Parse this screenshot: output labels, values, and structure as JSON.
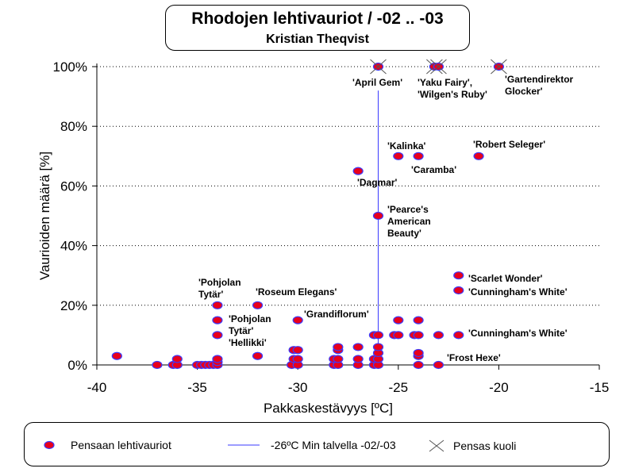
{
  "title": "Rhodojen lehtivauriot / -02 .. -03",
  "subtitle": "Kristian Theqvist",
  "chart_data": {
    "type": "scatter",
    "xlabel": "Pakkaskestävyys [ºC]",
    "ylabel": "Vaurioiden määrä [%]",
    "xlim": [
      -40,
      -15
    ],
    "ylim": [
      0,
      100
    ],
    "xticks": [
      "-40",
      "-35",
      "-30",
      "-25",
      "-20",
      "-15"
    ],
    "yticks": [
      "0%",
      "20%",
      "40%",
      "60%",
      "80%",
      "100%"
    ],
    "grid": "horizontal dotted",
    "series": [
      {
        "name": "Pensaan lehtivauriot",
        "color": "#e8001c",
        "points": [
          [
            -39,
            3
          ],
          [
            -37,
            0
          ],
          [
            -36.2,
            0
          ],
          [
            -36,
            0
          ],
          [
            -36,
            2
          ],
          [
            -35,
            0
          ],
          [
            -34.8,
            0
          ],
          [
            -34.6,
            0
          ],
          [
            -34.4,
            0
          ],
          [
            -34.2,
            0
          ],
          [
            -34,
            0
          ],
          [
            -34,
            1
          ],
          [
            -34,
            2
          ],
          [
            -34,
            10
          ],
          [
            -34,
            15
          ],
          [
            -34,
            20
          ],
          [
            -32,
            3
          ],
          [
            -32,
            20
          ],
          [
            -30.3,
            0
          ],
          [
            -30,
            0
          ],
          [
            -30.2,
            2
          ],
          [
            -30,
            2
          ],
          [
            -30.2,
            5
          ],
          [
            -30,
            5
          ],
          [
            -30,
            15
          ],
          [
            -28.2,
            0
          ],
          [
            -28,
            0
          ],
          [
            -28.2,
            2
          ],
          [
            -28,
            2
          ],
          [
            -28,
            5
          ],
          [
            -28,
            6
          ],
          [
            -27,
            0
          ],
          [
            -27,
            2
          ],
          [
            -27,
            6
          ],
          [
            -27,
            65
          ],
          [
            -26.2,
            0
          ],
          [
            -26,
            0
          ],
          [
            -26.2,
            2
          ],
          [
            -26,
            2
          ],
          [
            -26,
            4
          ],
          [
            -26,
            6
          ],
          [
            -26.2,
            10
          ],
          [
            -26,
            10
          ],
          [
            -26,
            50
          ],
          [
            -25.2,
            10
          ],
          [
            -25,
            10
          ],
          [
            -25,
            15
          ],
          [
            -25,
            70
          ],
          [
            -24.2,
            10
          ],
          [
            -24,
            10
          ],
          [
            -24,
            0
          ],
          [
            -24,
            3
          ],
          [
            -24,
            4
          ],
          [
            -24,
            15
          ],
          [
            -24,
            70
          ],
          [
            -23,
            0
          ],
          [
            -23,
            10
          ],
          [
            -22,
            10
          ],
          [
            -22,
            25
          ],
          [
            -22,
            30
          ],
          [
            -21,
            70
          ]
        ]
      },
      {
        "name": "Pensas kuoli",
        "color": "#e8001c",
        "points": [
          [
            -26,
            100
          ],
          [
            -23.2,
            100
          ],
          [
            -23,
            100
          ],
          [
            -20,
            100
          ]
        ]
      }
    ],
    "reference_line": {
      "name": "-26ºC Min talvella -02/-03",
      "x": -26,
      "y_range": [
        0,
        92
      ],
      "color": "#3a3aff"
    },
    "annotations": [
      {
        "text": [
          "'April Gem'"
        ],
        "x": -26,
        "y": 100
      },
      {
        "text": [
          "'Yaku Fairy',",
          "'Wilgen's Ruby'"
        ],
        "x": -23,
        "y": 100
      },
      {
        "text": [
          "'Gartendirektor",
          "Glocker'"
        ],
        "x": -20,
        "y": 100
      },
      {
        "text": [
          "'Kalinka'"
        ],
        "x": -25,
        "y": 70
      },
      {
        "text": [
          "'Robert Seleger'"
        ],
        "x": -21,
        "y": 70
      },
      {
        "text": [
          "'Caramba'"
        ],
        "x": -24,
        "y": 70
      },
      {
        "text": [
          "'Dagmar'"
        ],
        "x": -27,
        "y": 65
      },
      {
        "text": [
          "'Pearce's",
          "American",
          "Beauty'"
        ],
        "x": -26,
        "y": 50
      },
      {
        "text": [
          "'Scarlet Wonder'"
        ],
        "x": -22,
        "y": 30
      },
      {
        "text": [
          "'Cunningham's White'"
        ],
        "x": -22,
        "y": 25
      },
      {
        "text": [
          "'Cunningham's White'"
        ],
        "x": -22,
        "y": 10
      },
      {
        "text": [
          "'Pohjolan",
          "Tytär'"
        ],
        "x": -34,
        "y": 20
      },
      {
        "text": [
          "'Roseum Elegans'"
        ],
        "x": -32,
        "y": 20
      },
      {
        "text": [
          "'Pohjolan",
          "Tytär'",
          "'Hellikki'"
        ],
        "x": -34,
        "y": 15
      },
      {
        "text": [
          "'Grandiflorum'"
        ],
        "x": -30,
        "y": 15
      },
      {
        "text": [
          "'Frost Hexe'"
        ],
        "x": -23,
        "y": 0
      }
    ]
  },
  "legend": {
    "items": [
      {
        "label": "Pensaan lehtivauriot",
        "symbol": "ellipse"
      },
      {
        "label": "-26ºC Min talvella -02/-03",
        "symbol": "line"
      },
      {
        "label": "Pensas kuoli",
        "symbol": "cross"
      }
    ]
  },
  "colors": {
    "marker_fill": "#e8001c",
    "marker_edge": "#3a3aff",
    "ref_line": "#3a3aff",
    "cross": "#555555"
  }
}
